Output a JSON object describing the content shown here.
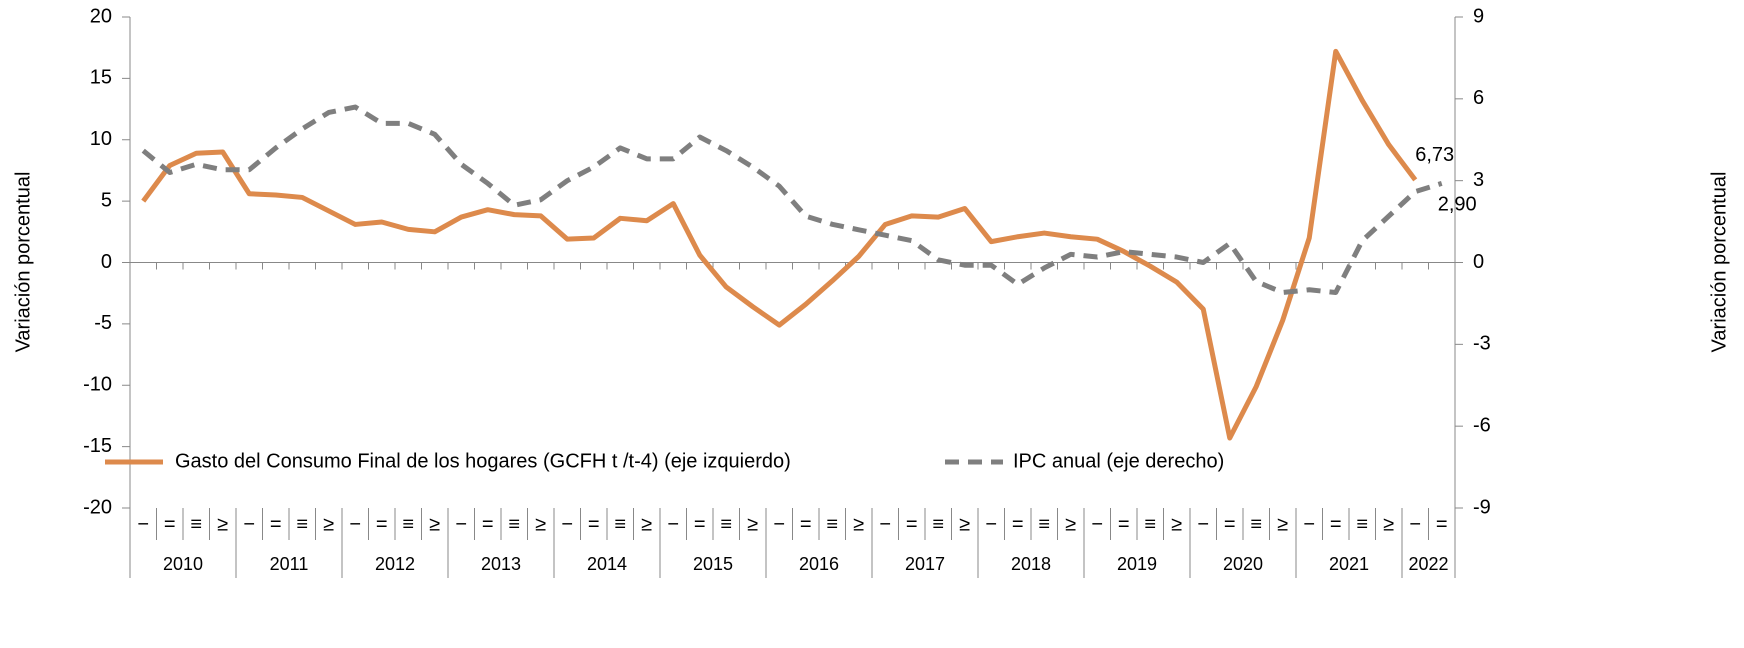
{
  "chart_data": {
    "type": "line",
    "categories": [
      "−",
      "=",
      "≡",
      "≥",
      "−",
      "=",
      "≡",
      "≥",
      "−",
      "=",
      "≡",
      "≥",
      "−",
      "=",
      "≡",
      "≥",
      "−",
      "=",
      "≡",
      "≥",
      "−",
      "=",
      "≡",
      "≥",
      "−",
      "=",
      "≡",
      "≥",
      "−",
      "=",
      "≡",
      "≥",
      "−",
      "=",
      "≡",
      "≥",
      "−",
      "=",
      "≡",
      "≥",
      "−",
      "=",
      "≡",
      "≥",
      "−",
      "=",
      "≡",
      "≥",
      "−",
      "="
    ],
    "years": [
      "2010",
      "2011",
      "2012",
      "2013",
      "2014",
      "2015",
      "2016",
      "2017",
      "2018",
      "2019",
      "2020",
      "2021",
      "2022"
    ],
    "y_label": "Variación porcentual",
    "y2_label": "Variación porcentual",
    "ylim": [
      -20,
      20
    ],
    "yticks": [
      -20,
      -15,
      -10,
      -5,
      0,
      5,
      10,
      15,
      20
    ],
    "y2lim": [
      -9,
      9
    ],
    "y2ticks": [
      -9,
      -6,
      -3,
      0,
      3,
      6,
      9
    ],
    "series": [
      {
        "name": "Gasto del Consumo Final de los hogares (GCFH t /t-4)  (eje izquierdo)",
        "color": "#dd8a4c",
        "dash": false,
        "label_color": "#f07070",
        "values": [
          5.0,
          7.9,
          8.9,
          9.0,
          5.6,
          5.5,
          5.3,
          4.2,
          3.1,
          3.3,
          2.7,
          2.5,
          3.7,
          4.3,
          3.9,
          3.8,
          1.9,
          2.0,
          3.6,
          3.4,
          4.8,
          0.6,
          -2.0,
          -3.6,
          -5.1,
          -3.4,
          -1.5,
          0.5,
          3.1,
          3.8,
          3.7,
          4.4,
          1.7,
          2.1,
          2.4,
          2.1,
          1.9,
          0.9,
          -0.3,
          -1.6,
          -3.8,
          -14.3,
          -10.1,
          -4.7,
          2.0,
          17.2,
          13.2,
          9.6,
          6.73,
          null
        ],
        "value_labels": [
          null,
          null,
          null,
          null,
          null,
          null,
          null,
          null,
          null,
          null,
          null,
          null,
          null,
          null,
          null,
          null,
          null,
          null,
          null,
          null,
          null,
          null,
          null,
          null,
          null,
          null,
          null,
          null,
          null,
          null,
          null,
          null,
          null,
          null,
          null,
          null,
          null,
          null,
          null,
          null,
          null,
          null,
          null,
          null,
          null,
          null,
          null,
          null,
          "6,73",
          null
        ]
      },
      {
        "name": "IPC anual (eje derecho)",
        "color": "#7f7f7f",
        "dash": true,
        "axis": "y2",
        "label_color": "#000000",
        "values": [
          4.1,
          3.3,
          3.6,
          3.4,
          3.4,
          4.2,
          4.9,
          5.5,
          5.7,
          5.1,
          5.1,
          4.7,
          3.6,
          2.9,
          2.1,
          2.3,
          3.0,
          3.5,
          4.2,
          3.8,
          3.8,
          4.6,
          4.1,
          3.5,
          2.8,
          1.7,
          1.4,
          1.2,
          1.0,
          0.8,
          0.1,
          -0.1,
          -0.1,
          -0.8,
          -0.2,
          0.3,
          0.2,
          0.4,
          0.3,
          0.2,
          0.0,
          0.7,
          -0.7,
          -1.1,
          -1.0,
          -1.1,
          0.8,
          1.7,
          2.6,
          2.9
        ],
        "value_labels": [
          null,
          null,
          null,
          null,
          null,
          null,
          null,
          null,
          null,
          null,
          null,
          null,
          null,
          null,
          null,
          null,
          null,
          null,
          null,
          null,
          null,
          null,
          null,
          null,
          null,
          null,
          null,
          null,
          null,
          null,
          null,
          null,
          null,
          null,
          null,
          null,
          null,
          null,
          null,
          null,
          null,
          null,
          null,
          null,
          null,
          null,
          null,
          null,
          null,
          "2,90"
        ]
      }
    ]
  }
}
